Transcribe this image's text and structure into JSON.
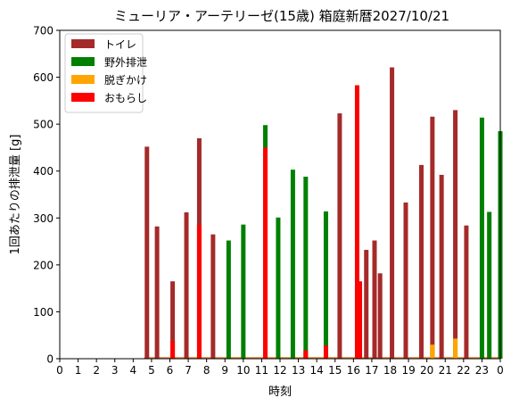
{
  "chart_data": {
    "type": "bar",
    "title": "ミューリア・アーテリーゼ(15歳) 箱庭新暦2027/10/21",
    "xlabel": "時刻",
    "ylabel": "1回あたりの排泄量 [g]",
    "xlim": [
      0,
      24
    ],
    "ylim": [
      0,
      700
    ],
    "x_ticks": [
      "0",
      "1",
      "2",
      "3",
      "4",
      "5",
      "6",
      "7",
      "8",
      "9",
      "10",
      "11",
      "12",
      "13",
      "14",
      "15",
      "16",
      "17",
      "18",
      "19",
      "20",
      "21",
      "22",
      "23",
      "0"
    ],
    "y_ticks": [
      0,
      100,
      200,
      300,
      400,
      500,
      600,
      700
    ],
    "legend_position": "top-left",
    "series": [
      {
        "name": "トイレ",
        "color": "#a52a2a",
        "points": [
          {
            "x": 4.75,
            "y": 452
          },
          {
            "x": 5.3,
            "y": 282
          },
          {
            "x": 6.15,
            "y": 165
          },
          {
            "x": 6.9,
            "y": 312
          },
          {
            "x": 7.6,
            "y": 470
          },
          {
            "x": 8.35,
            "y": 265
          },
          {
            "x": 15.25,
            "y": 523
          },
          {
            "x": 16.7,
            "y": 232
          },
          {
            "x": 17.15,
            "y": 252
          },
          {
            "x": 17.45,
            "y": 182
          },
          {
            "x": 18.1,
            "y": 621
          },
          {
            "x": 18.85,
            "y": 333
          },
          {
            "x": 19.7,
            "y": 413
          },
          {
            "x": 20.3,
            "y": 516
          },
          {
            "x": 20.8,
            "y": 392
          },
          {
            "x": 21.55,
            "y": 530
          },
          {
            "x": 22.15,
            "y": 284
          }
        ]
      },
      {
        "name": "野外排泄",
        "color": "#008000",
        "points": [
          {
            "x": 9.2,
            "y": 252
          },
          {
            "x": 10.0,
            "y": 286
          },
          {
            "x": 11.2,
            "y": 498
          },
          {
            "x": 11.9,
            "y": 301
          },
          {
            "x": 12.7,
            "y": 403
          },
          {
            "x": 13.4,
            "y": 388
          },
          {
            "x": 14.5,
            "y": 314
          },
          {
            "x": 23.0,
            "y": 514
          },
          {
            "x": 23.4,
            "y": 313
          },
          {
            "x": 24.0,
            "y": 485
          }
        ]
      },
      {
        "name": "脱ぎかけ",
        "color": "#ffa500",
        "points": [
          {
            "x": 20.3,
            "y": 30
          },
          {
            "x": 21.55,
            "y": 43
          }
        ]
      },
      {
        "name": "おもらし",
        "color": "#ff0000",
        "points": [
          {
            "x": 6.15,
            "y": 38
          },
          {
            "x": 7.6,
            "y": 285
          },
          {
            "x": 11.2,
            "y": 450
          },
          {
            "x": 13.4,
            "y": 18
          },
          {
            "x": 14.5,
            "y": 28
          },
          {
            "x": 16.2,
            "y": 583
          },
          {
            "x": 16.35,
            "y": 165
          }
        ]
      }
    ]
  }
}
